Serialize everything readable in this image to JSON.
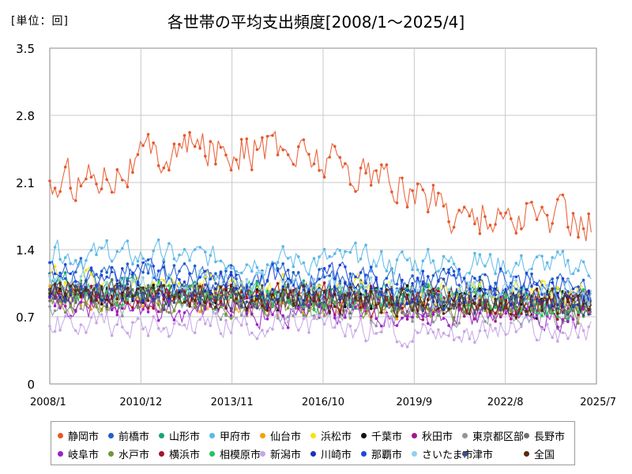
{
  "header": {
    "unit": "[単位：回]",
    "title": "各世帯の平均支出頻度[2008/1〜2025/4]"
  },
  "chart_data": {
    "type": "line",
    "title": "各世帯の平均支出頻度[2008/1〜2025/4]",
    "unit": "[単位：回]",
    "ylim": [
      0,
      3.5
    ],
    "y_ticks": [
      "0",
      "0.7",
      "1.4",
      "2.1",
      "2.8",
      "3.5"
    ],
    "x_ticks": [
      "2008/1",
      "2010/12",
      "2013/11",
      "2016/10",
      "2019/9",
      "2022/8",
      "2025/7"
    ],
    "grid": true,
    "legend_position": "bottom",
    "series": [
      {
        "name": "静岡市",
        "color": "#e8572a",
        "base": 2.05
      },
      {
        "name": "前橋市",
        "color": "#1f5fc8",
        "base": 1.15
      },
      {
        "name": "山形市",
        "color": "#17a37a",
        "base": 1.0
      },
      {
        "name": "甲府市",
        "color": "#5ab8e8",
        "base": 1.35
      },
      {
        "name": "仙台市",
        "color": "#f0a30a",
        "base": 0.9
      },
      {
        "name": "浜松市",
        "color": "#f2e50c",
        "base": 1.05
      },
      {
        "name": "千葉市",
        "color": "#111111",
        "base": 0.95
      },
      {
        "name": "秋田市",
        "color": "#a2168e",
        "base": 0.9
      },
      {
        "name": "東京都区部",
        "color": "#8e969c",
        "base": 0.85
      },
      {
        "name": "長野市",
        "color": "#6e6e6e",
        "base": 0.95
      },
      {
        "name": "岐阜市",
        "color": "#9b22c8",
        "base": 0.8
      },
      {
        "name": "水戸市",
        "color": "#6f9a36",
        "base": 0.9
      },
      {
        "name": "横浜市",
        "color": "#a5122a",
        "base": 0.95
      },
      {
        "name": "相模原市",
        "color": "#22c55e",
        "base": 0.95
      },
      {
        "name": "新潟市",
        "color": "#c6a6e6",
        "base": 0.65
      },
      {
        "name": "川崎市",
        "color": "#1d2fbf",
        "base": 1.0
      },
      {
        "name": "那覇市",
        "color": "#1c49d8",
        "base": 1.15
      },
      {
        "name": "さいたま市",
        "color": "#8fd0ee",
        "base": 1.05
      },
      {
        "name": "津市",
        "color": "#3e4f86",
        "base": 0.95
      },
      {
        "name": "全国",
        "color": "#5a2a0c",
        "base": 0.95
      }
    ]
  }
}
